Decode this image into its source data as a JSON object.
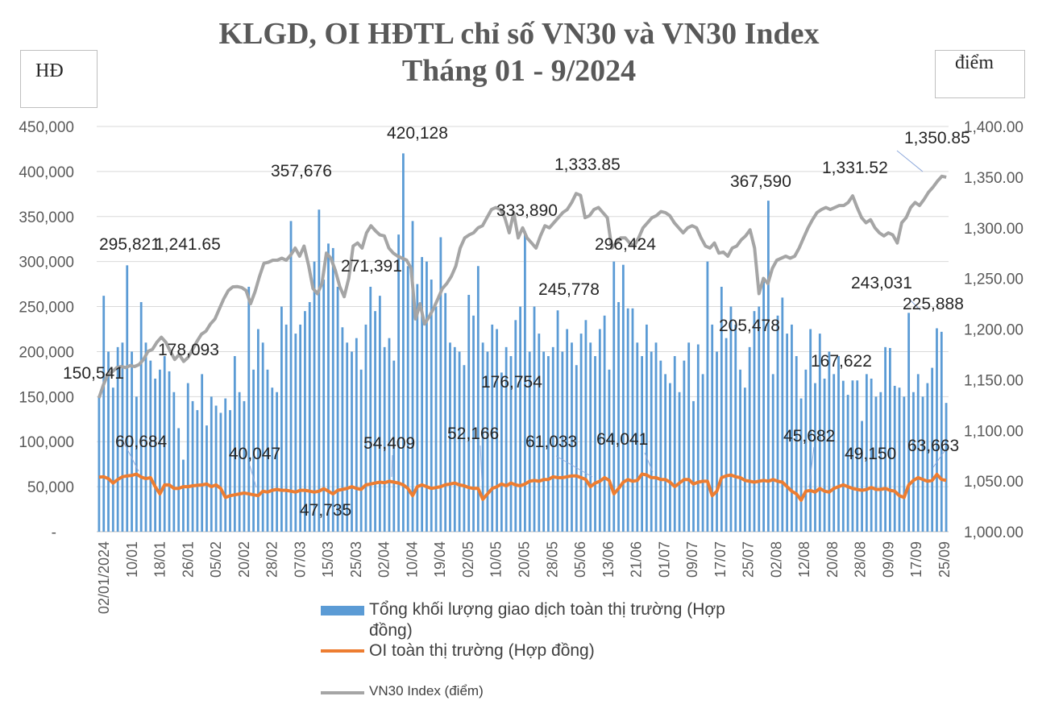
{
  "chart_data": {
    "type": "bar+line",
    "title": "KLGD, OI HĐTL chỉ số VN30 và VN30 Index",
    "subtitle": "Tháng 01 - 9/2024",
    "left_unit": "HĐ",
    "right_unit": "điểm",
    "left_axis": {
      "range": [
        0,
        450000
      ],
      "ticks": [
        "-",
        "50,000",
        "100,000",
        "150,000",
        "200,000",
        "250,000",
        "300,000",
        "350,000",
        "400,000",
        "450,000"
      ]
    },
    "right_axis": {
      "range": [
        1000,
        1400
      ],
      "ticks": [
        "1,000.00",
        "1,050.00",
        "1,100.00",
        "1,150.00",
        "1,200.00",
        "1,250.00",
        "1,300.00",
        "1,350.00",
        "1,400.00"
      ]
    },
    "grid": true,
    "legend_position": "bottom",
    "x_ticks": [
      "02/01/2024",
      "10/01",
      "18/01",
      "26/01",
      "05/02",
      "20/02",
      "28/02",
      "07/03",
      "15/03",
      "25/03",
      "02/04",
      "10/04",
      "19/04",
      "02/05",
      "10/05",
      "20/05",
      "28/05",
      "05/06",
      "13/06",
      "21/06",
      "01/07",
      "09/07",
      "17/07",
      "25/07",
      "02/08",
      "12/08",
      "20/08",
      "28/08",
      "09/09",
      "17/09",
      "25/09"
    ],
    "series": [
      {
        "name": "Tổng khối lượng giao dịch toàn thị trường (Hợp đồng)",
        "axis": "left",
        "type": "bar",
        "values": [
          150541,
          262000,
          200000,
          160000,
          205000,
          210000,
          295821,
          200000,
          150000,
          255000,
          210000,
          190000,
          170000,
          180000,
          195000,
          178093,
          155000,
          115000,
          80000,
          165000,
          145000,
          135000,
          175000,
          118000,
          150000,
          140000,
          132000,
          148000,
          135000,
          195000,
          155000,
          145000,
          272000,
          180000,
          225000,
          210000,
          180000,
          160000,
          155000,
          250000,
          230000,
          345000,
          220000,
          230000,
          245000,
          255000,
          300000,
          357676,
          280000,
          320000,
          315000,
          272000,
          227000,
          210000,
          200000,
          215000,
          180000,
          230000,
          272000,
          245000,
          262000,
          205000,
          215000,
          190000,
          330000,
          420128,
          295000,
          345000,
          275000,
          305000,
          300000,
          280000,
          250000,
          327000,
          265000,
          210000,
          205000,
          200000,
          185000,
          263000,
          240000,
          295000,
          210000,
          200000,
          230000,
          225000,
          176754,
          205000,
          195000,
          235000,
          250000,
          333890,
          200000,
          250000,
          220000,
          200000,
          195000,
          205000,
          245778,
          200000,
          225000,
          210000,
          185000,
          220000,
          235000,
          210000,
          195000,
          225000,
          240000,
          180000,
          300000,
          255000,
          296424,
          248000,
          248000,
          210000,
          195000,
          230000,
          200000,
          210000,
          190000,
          175000,
          165000,
          195000,
          155000,
          190000,
          210000,
          145000,
          208000,
          175000,
          300000,
          230000,
          200000,
          272000,
          215000,
          250000,
          230000,
          180000,
          160000,
          205000,
          245000,
          250000,
          280000,
          367590,
          175000,
          240000,
          260000,
          220000,
          230000,
          195000,
          148000,
          180000,
          225000,
          165000,
          220000,
          170000,
          200000,
          175000,
          195000,
          167622,
          152000,
          168000,
          168000,
          123000,
          175000,
          170000,
          150000,
          155000,
          205000,
          204000,
          162000,
          160000,
          150000,
          243031,
          155000,
          175000,
          150000,
          165000,
          182000,
          225888,
          222000,
          143000
        ]
      },
      {
        "name": "OI toàn thị trường (Hợp đồng)",
        "axis": "left",
        "type": "line",
        "values": [
          60684,
          61000,
          59000,
          54000,
          58000,
          61000,
          62000,
          62500,
          64000,
          60684,
          59000,
          60000,
          50000,
          42000,
          52000,
          52000,
          48000,
          48000,
          50000,
          50000,
          51000,
          51500,
          52000,
          53000,
          50000,
          52000,
          48000,
          38000,
          40000,
          41000,
          42000,
          43000,
          42000,
          41000,
          40047,
          45000,
          44000,
          46000,
          47000,
          46000,
          46000,
          45000,
          44000,
          46000,
          46000,
          45000,
          44000,
          45000,
          47735,
          45000,
          42000,
          46000,
          47000,
          48000,
          50000,
          48000,
          47000,
          52000,
          53000,
          54000,
          55000,
          54409,
          56000,
          55000,
          54000,
          52000,
          48000,
          40000,
          50000,
          52000,
          50000,
          48000,
          49000,
          50000,
          52166,
          53000,
          54000,
          52000,
          51000,
          49000,
          48000,
          48000,
          36000,
          42000,
          48000,
          50000,
          53000,
          51000,
          54000,
          52000,
          51000,
          53000,
          56000,
          57000,
          56000,
          58000,
          58000,
          61033,
          60000,
          60000,
          61000,
          62000,
          62000,
          60000,
          58000,
          50000,
          54000,
          56000,
          60000,
          57000,
          42000,
          48000,
          55000,
          58000,
          56000,
          57000,
          64041,
          63000,
          60000,
          60000,
          58000,
          58000,
          55000,
          50000,
          54000,
          58000,
          58000,
          53000,
          55000,
          56000,
          56000,
          40000,
          45000,
          60000,
          62000,
          63000,
          61000,
          60000,
          57000,
          56000,
          55000,
          56000,
          57000,
          56000,
          58000,
          56000,
          55000,
          50000,
          45000,
          42000,
          35000,
          45000,
          45682,
          44000,
          48000,
          45000,
          44000,
          48000,
          50000,
          52000,
          50000,
          48000,
          47000,
          46000,
          47000,
          49150,
          47000,
          47000,
          48000,
          46000,
          45000,
          40000,
          38000,
          52000,
          57000,
          60000,
          58000,
          56000,
          57000,
          63663,
          58000,
          57000
        ]
      },
      {
        "name": "VN30 Index (điểm)",
        "axis": "right",
        "type": "line",
        "values": [
          1132,
          1145,
          1155,
          1158,
          1162,
          1163,
          1162,
          1164,
          1163,
          1165,
          1170,
          1178,
          1180,
          1187,
          1192,
          1187,
          1178,
          1170,
          1175,
          1168,
          1172,
          1180,
          1188,
          1195,
          1198,
          1205,
          1210,
          1220,
          1230,
          1238,
          1241.65,
          1242,
          1241,
          1238,
          1225,
          1237,
          1252,
          1265,
          1266,
          1268,
          1268,
          1270,
          1268,
          1273,
          1280,
          1272,
          1282,
          1263,
          1240,
          1235,
          1245,
          1275,
          1270,
          1258,
          1242,
          1232,
          1250,
          1282,
          1285,
          1280,
          1295,
          1302,
          1297,
          1293,
          1292,
          1280,
          1275,
          1272,
          1270,
          1268,
          1260,
          1210,
          1225,
          1205,
          1212,
          1220,
          1230,
          1240,
          1245,
          1252,
          1262,
          1280,
          1290,
          1293,
          1295,
          1300,
          1302,
          1310,
          1318,
          1320,
          1318,
          1310,
          1295,
          1315,
          1290,
          1300,
          1290,
          1285,
          1280,
          1292,
          1302,
          1300,
          1305,
          1310,
          1315,
          1318,
          1325,
          1333.85,
          1332,
          1310,
          1312,
          1318,
          1320,
          1315,
          1310,
          1280,
          1285,
          1290,
          1290,
          1285,
          1282,
          1290,
          1300,
          1305,
          1310,
          1312,
          1316,
          1315,
          1312,
          1305,
          1300,
          1295,
          1300,
          1302,
          1300,
          1290,
          1282,
          1280,
          1285,
          1275,
          1276,
          1272,
          1280,
          1282,
          1288,
          1292,
          1298,
          1280,
          1235,
          1250,
          1245,
          1260,
          1268,
          1270,
          1272,
          1270,
          1272,
          1280,
          1290,
          1300,
          1308,
          1315,
          1318,
          1320,
          1318,
          1320,
          1322,
          1322,
          1325,
          1331.52,
          1320,
          1310,
          1305,
          1308,
          1300,
          1295,
          1292,
          1295,
          1293,
          1285,
          1305,
          1310,
          1320,
          1325,
          1322,
          1328,
          1335,
          1340,
          1346,
          1350.85,
          1350
        ]
      }
    ],
    "annotations": [
      "150,541",
      "295,821",
      "178,093",
      "357,676",
      "420,128",
      "333,890",
      "245,778",
      "296,424",
      "176,754",
      "367,590",
      "205,478",
      "167,622",
      "243,031",
      "225,888",
      "60,684",
      "40,047",
      "47,735",
      "54,409",
      "52,166",
      "61,033",
      "64,041",
      "45,682",
      "49,150",
      "63,663",
      "1,241.65",
      "271,391",
      "1,333.85",
      "1,331.52",
      "1,350.85"
    ]
  },
  "colors": {
    "bar": "#5b9bd5",
    "oi": "#ed7d31",
    "vn30": "#a5a5a5",
    "grid": "#d9d9d9",
    "text": "#595959"
  }
}
